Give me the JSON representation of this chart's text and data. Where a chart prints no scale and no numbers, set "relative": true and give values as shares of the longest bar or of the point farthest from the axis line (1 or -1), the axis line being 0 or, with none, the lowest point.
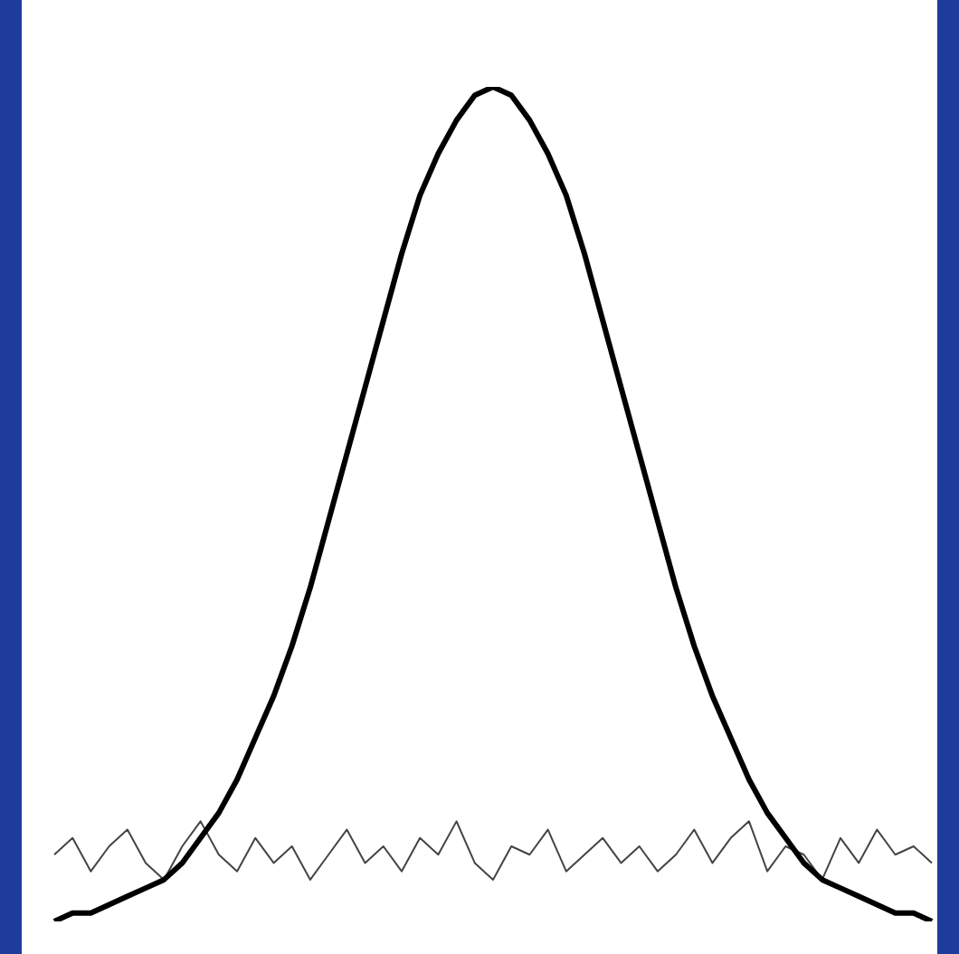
{
  "chart_data": {
    "type": "line",
    "relative": true,
    "legend": false,
    "tick_labels": false,
    "marker": "none",
    "categories": [
      null,
      null,
      null,
      null,
      null,
      null,
      null,
      null,
      null,
      null,
      null,
      null,
      null,
      null,
      null,
      null,
      null,
      null,
      null,
      null,
      null,
      null,
      null,
      null,
      null,
      null,
      null,
      null,
      null,
      null,
      null,
      null,
      null,
      null,
      null,
      null,
      null,
      null,
      null,
      null,
      null,
      null,
      null,
      null,
      null,
      null,
      null,
      null,
      null
    ],
    "series": [
      {
        "color": "#000000",
        "values": [
          0,
          0.01,
          0.01,
          0.02,
          0.03,
          0.04,
          0.05,
          0.07,
          0.1,
          0.13,
          0.17,
          0.22,
          0.27,
          0.33,
          0.4,
          0.48,
          0.56,
          0.64,
          0.72,
          0.8,
          0.87,
          0.92,
          0.96,
          0.99,
          1,
          0.99,
          0.96,
          0.92,
          0.87,
          0.8,
          0.72,
          0.64,
          0.56,
          0.48,
          0.4,
          0.33,
          0.27,
          0.22,
          0.17,
          0.13,
          0.1,
          0.07,
          0.05,
          0.04,
          0.03,
          0.02,
          0.01,
          0.01,
          0
        ]
      },
      {
        "color": "#444444",
        "values": [
          0.08,
          0.1,
          0.06,
          0.09,
          0.11,
          0.07,
          0.05,
          0.09,
          0.12,
          0.08,
          0.06,
          0.1,
          0.07,
          0.09,
          0.05,
          0.08,
          0.11,
          0.07,
          0.09,
          0.06,
          0.1,
          0.08,
          0.12,
          0.07,
          0.05,
          0.09,
          0.08,
          0.11,
          0.06,
          0.08,
          0.1,
          0.07,
          0.09,
          0.06,
          0.08,
          0.11,
          0.07,
          0.1,
          0.12,
          0.06,
          0.09,
          0.08,
          0.05,
          0.1,
          0.07,
          0.11,
          0.08,
          0.09,
          0.07
        ]
      }
    ]
  }
}
